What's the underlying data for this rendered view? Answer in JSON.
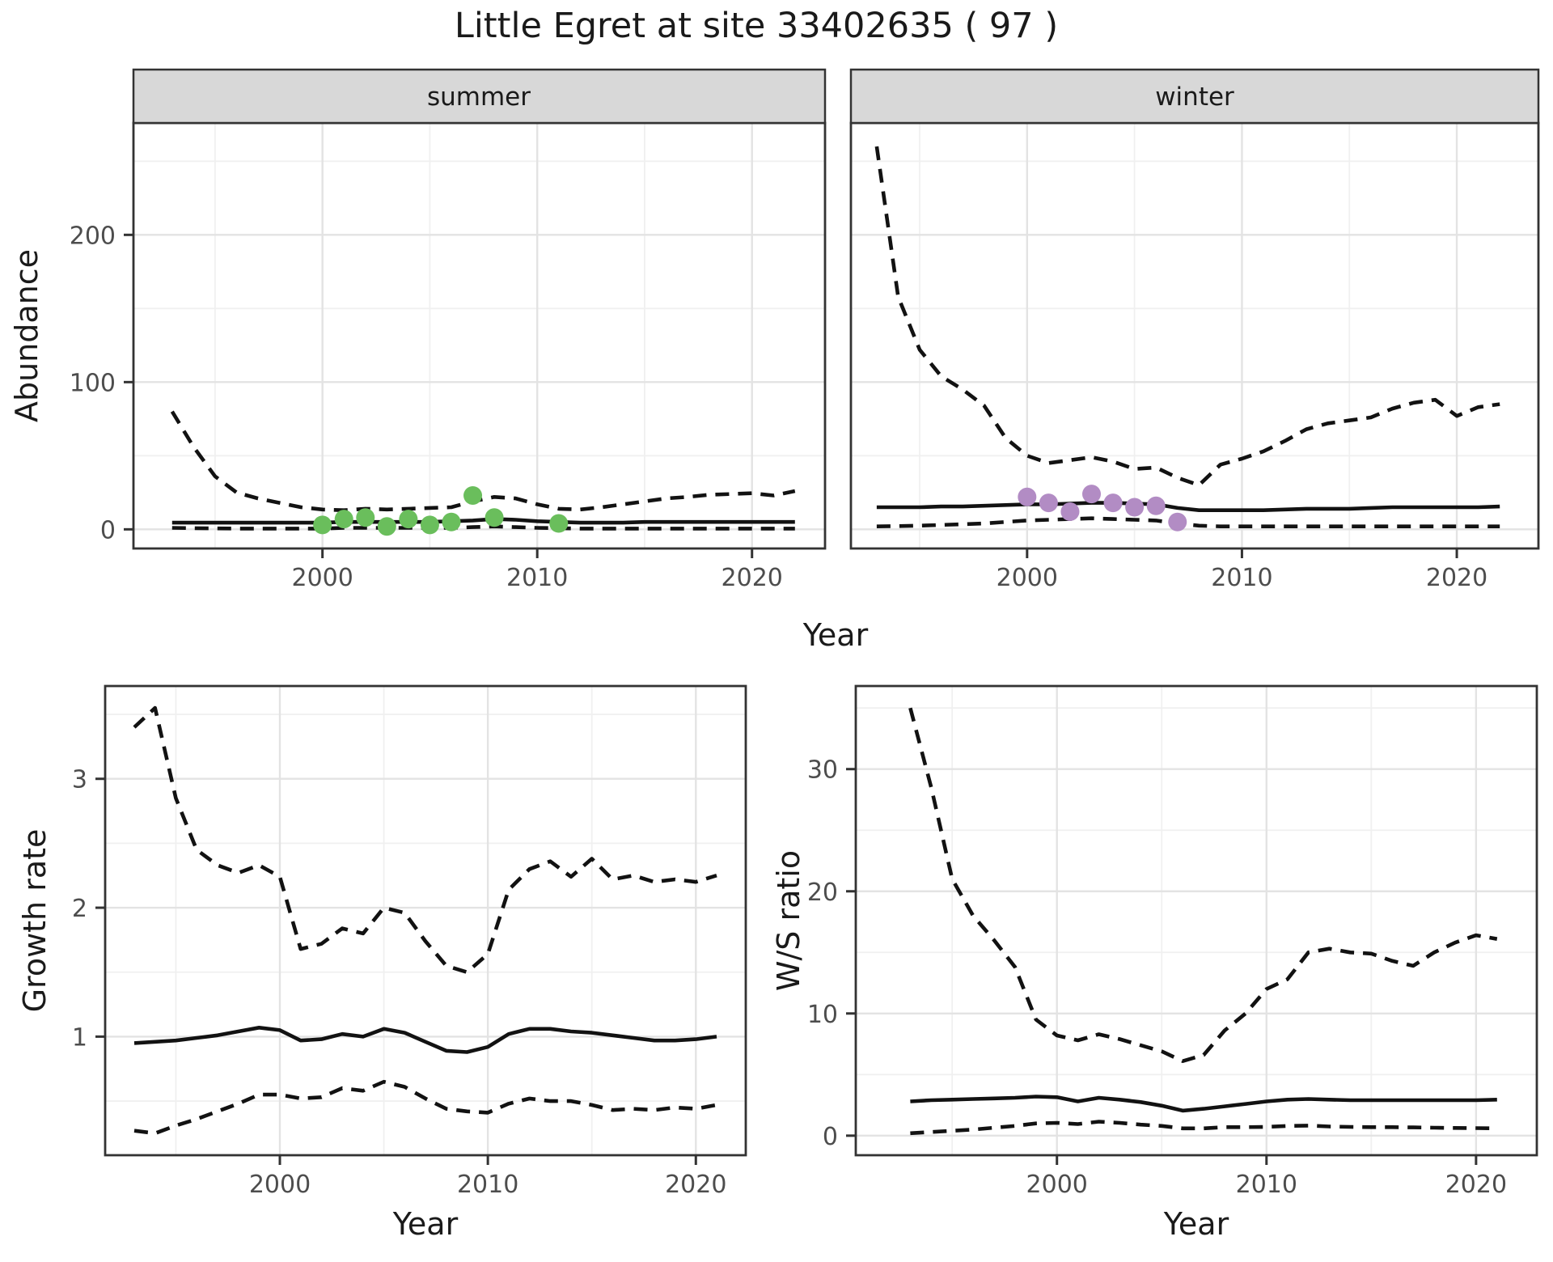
{
  "title": "Little Egret at site 33402635 ( 97 )",
  "facets": {
    "summer": "summer",
    "winter": "winter"
  },
  "axis_titles": {
    "abundance": "Abundance",
    "year": "Year",
    "growth": "Growth rate",
    "ws": "W/S ratio"
  },
  "colors": {
    "summer_point": "#6ABE5C",
    "winter_point": "#B28CC4",
    "line": "#121212",
    "grid_major": "#E3E3E3",
    "grid_minor": "#F0F0F0",
    "panel_border": "#333333",
    "strip_fill": "#D8D8D8",
    "tick_mark": "#333333",
    "tick_label": "#4D4D4D",
    "panel_bg": "#FFFFFF"
  },
  "chart_data": [
    {
      "type": "line",
      "title": "summer",
      "xlabel": "Year",
      "ylabel": "Abundance",
      "x": [
        1993,
        1994,
        1995,
        1996,
        1997,
        1998,
        1999,
        2000,
        2001,
        2002,
        2003,
        2004,
        2005,
        2006,
        2007,
        2008,
        2009,
        2010,
        2011,
        2012,
        2013,
        2014,
        2015,
        2016,
        2017,
        2018,
        2019,
        2020,
        2021,
        2022
      ],
      "series": [
        {
          "name": "median",
          "style": "solid",
          "values": [
            4.5,
            4.5,
            4.5,
            4.5,
            4.5,
            4.5,
            4.5,
            4.5,
            5,
            5,
            5,
            5,
            5,
            5.5,
            6,
            7,
            6.5,
            5.5,
            5,
            4.5,
            4.5,
            4.5,
            5,
            5,
            5,
            5,
            5,
            5,
            5,
            5
          ]
        },
        {
          "name": "upper_ci",
          "style": "dashed",
          "values": [
            80,
            56,
            36,
            25,
            21,
            18,
            15,
            13.5,
            13,
            14,
            13.5,
            14,
            14.5,
            15,
            19,
            22,
            21,
            17,
            14,
            13.5,
            15,
            17,
            19,
            21,
            22,
            23.5,
            24,
            24.5,
            23,
            26
          ]
        },
        {
          "name": "lower_ci",
          "style": "dashed",
          "values": [
            1,
            0.8,
            0.6,
            0.5,
            0.5,
            0.5,
            0.5,
            0.5,
            1,
            1,
            1,
            1,
            1,
            1,
            1.5,
            2,
            1.5,
            1,
            0.8,
            0.5,
            0.5,
            0.5,
            0.5,
            0.5,
            0.5,
            0.5,
            0.5,
            0.5,
            0.5,
            0.5
          ]
        }
      ],
      "points": {
        "x": [
          2000,
          2001,
          2002,
          2003,
          2004,
          2005,
          2006,
          2007,
          2008,
          2011
        ],
        "y": [
          3,
          7,
          8,
          2,
          7,
          3,
          5,
          23,
          8,
          4
        ],
        "color": "#6ABE5C"
      },
      "xlim": [
        1991.2,
        2023.4
      ],
      "ylim": [
        -13,
        276
      ],
      "x_major": [
        2000,
        2010,
        2020
      ],
      "x_minor": [
        1995,
        2005,
        2015
      ],
      "y_major": [
        0,
        100,
        200
      ],
      "y_minor": [
        50,
        150,
        250
      ],
      "grid": true,
      "legend": "none"
    },
    {
      "type": "line",
      "title": "winter",
      "xlabel": "Year",
      "ylabel": "Abundance",
      "x": [
        1993,
        1994,
        1995,
        1996,
        1997,
        1998,
        1999,
        2000,
        2001,
        2002,
        2003,
        2004,
        2005,
        2006,
        2007,
        2008,
        2009,
        2010,
        2011,
        2012,
        2013,
        2014,
        2015,
        2016,
        2017,
        2018,
        2019,
        2020,
        2021,
        2022
      ],
      "series": [
        {
          "name": "median",
          "style": "solid",
          "values": [
            15,
            15,
            15,
            15.5,
            15.5,
            16,
            16.5,
            17,
            17,
            17.5,
            18,
            18,
            17.5,
            17,
            14.5,
            13,
            13,
            13,
            13,
            13.5,
            14,
            14,
            14,
            14.5,
            15,
            15,
            15,
            15,
            15,
            15.5
          ]
        },
        {
          "name": "upper_ci",
          "style": "dashed",
          "values": [
            260,
            158,
            122,
            104,
            95,
            84,
            62,
            50,
            45,
            47,
            49,
            46,
            41,
            42,
            35,
            30,
            44,
            48,
            53,
            60,
            68,
            72,
            74,
            76,
            82,
            86,
            88,
            77,
            83,
            85
          ]
        },
        {
          "name": "lower_ci",
          "style": "dashed",
          "values": [
            2,
            2.2,
            2.5,
            3,
            3.5,
            4,
            5,
            6,
            6.5,
            7,
            7.5,
            7,
            6.5,
            6,
            4,
            2.5,
            2,
            2,
            2,
            2,
            2,
            2,
            2,
            2,
            2,
            2,
            2,
            2,
            2,
            2
          ]
        }
      ],
      "points": {
        "x": [
          2000,
          2001,
          2002,
          2003,
          2004,
          2005,
          2006,
          2007
        ],
        "y": [
          22,
          18,
          12,
          24,
          18,
          15,
          16,
          5
        ],
        "color": "#B28CC4"
      },
      "xlim": [
        1991.8,
        2023.8
      ],
      "ylim": [
        -13,
        276
      ],
      "x_major": [
        2000,
        2010,
        2020
      ],
      "x_minor": [
        1995,
        2005,
        2015
      ],
      "y_major": [
        0,
        100,
        200
      ],
      "y_minor": [
        50,
        150,
        250
      ],
      "grid": true,
      "legend": "none"
    },
    {
      "type": "line",
      "title": "",
      "xlabel": "Year",
      "ylabel": "Growth rate",
      "x": [
        1993,
        1994,
        1995,
        1996,
        1997,
        1998,
        1999,
        2000,
        2001,
        2002,
        2003,
        2004,
        2005,
        2006,
        2007,
        2008,
        2009,
        2010,
        2011,
        2012,
        2013,
        2014,
        2015,
        2016,
        2017,
        2018,
        2019,
        2020,
        2021
      ],
      "series": [
        {
          "name": "median",
          "style": "solid",
          "values": [
            0.95,
            0.96,
            0.97,
            0.99,
            1.01,
            1.04,
            1.07,
            1.05,
            0.97,
            0.98,
            1.02,
            1.0,
            1.06,
            1.03,
            0.96,
            0.89,
            0.88,
            0.92,
            1.02,
            1.06,
            1.06,
            1.04,
            1.03,
            1.01,
            0.99,
            0.97,
            0.97,
            0.98,
            1.0
          ]
        },
        {
          "name": "upper_ci",
          "style": "dashed",
          "values": [
            3.4,
            3.55,
            2.85,
            2.45,
            2.33,
            2.27,
            2.33,
            2.24,
            1.68,
            1.72,
            1.84,
            1.8,
            2.0,
            1.96,
            1.74,
            1.55,
            1.5,
            1.64,
            2.14,
            2.3,
            2.36,
            2.24,
            2.38,
            2.22,
            2.25,
            2.2,
            2.22,
            2.2,
            2.25
          ]
        },
        {
          "name": "lower_ci",
          "style": "dashed",
          "values": [
            0.27,
            0.25,
            0.31,
            0.36,
            0.42,
            0.48,
            0.55,
            0.55,
            0.52,
            0.53,
            0.6,
            0.58,
            0.65,
            0.61,
            0.52,
            0.44,
            0.42,
            0.41,
            0.48,
            0.52,
            0.5,
            0.5,
            0.47,
            0.43,
            0.44,
            0.43,
            0.45,
            0.44,
            0.47
          ]
        }
      ],
      "points": null,
      "xlim": [
        1991.6,
        2022.4
      ],
      "ylim": [
        0.08,
        3.72
      ],
      "x_major": [
        2000,
        2010,
        2020
      ],
      "x_minor": [
        1995,
        2005,
        2015
      ],
      "y_major": [
        1,
        2,
        3
      ],
      "y_minor": [
        0.5,
        1.5,
        2.5,
        3.5
      ],
      "grid": true,
      "legend": "none"
    },
    {
      "type": "line",
      "title": "",
      "xlabel": "Year",
      "ylabel": "W/S ratio",
      "x": [
        1993,
        1994,
        1995,
        1996,
        1997,
        1998,
        1999,
        2000,
        2001,
        2002,
        2003,
        2004,
        2005,
        2006,
        2007,
        2008,
        2009,
        2010,
        2011,
        2012,
        2013,
        2014,
        2015,
        2016,
        2017,
        2018,
        2019,
        2020,
        2021
      ],
      "series": [
        {
          "name": "median",
          "style": "solid",
          "values": [
            2.8,
            2.9,
            2.95,
            3.0,
            3.05,
            3.1,
            3.2,
            3.15,
            2.8,
            3.1,
            2.95,
            2.75,
            2.45,
            2.05,
            2.2,
            2.4,
            2.6,
            2.8,
            2.95,
            3.0,
            2.95,
            2.9,
            2.9,
            2.9,
            2.9,
            2.9,
            2.9,
            2.9,
            2.95
          ]
        },
        {
          "name": "upper_ci",
          "style": "dashed",
          "values": [
            35,
            28.5,
            21,
            18,
            16,
            13.8,
            9.5,
            8.2,
            7.8,
            8.3,
            7.9,
            7.4,
            6.9,
            6.1,
            6.6,
            8.6,
            10,
            12,
            12.8,
            15,
            15.3,
            15,
            14.9,
            14.3,
            13.9,
            15,
            15.8,
            16.4,
            16.1
          ]
        },
        {
          "name": "lower_ci",
          "style": "dashed",
          "values": [
            0.2,
            0.3,
            0.4,
            0.5,
            0.65,
            0.8,
            1.0,
            1.05,
            0.95,
            1.15,
            1.05,
            0.9,
            0.8,
            0.6,
            0.6,
            0.7,
            0.7,
            0.72,
            0.8,
            0.82,
            0.75,
            0.72,
            0.7,
            0.7,
            0.68,
            0.65,
            0.63,
            0.62,
            0.6
          ]
        }
      ],
      "points": null,
      "xlim": [
        1990.4,
        2022.9
      ],
      "ylim": [
        -1.6,
        36.8
      ],
      "x_major": [
        2000,
        2010,
        2020
      ],
      "x_minor": [
        1995,
        2005,
        2015
      ],
      "y_major": [
        0,
        10,
        20,
        30
      ],
      "y_minor": [
        5,
        15,
        25,
        35
      ],
      "grid": true,
      "legend": "none"
    }
  ]
}
